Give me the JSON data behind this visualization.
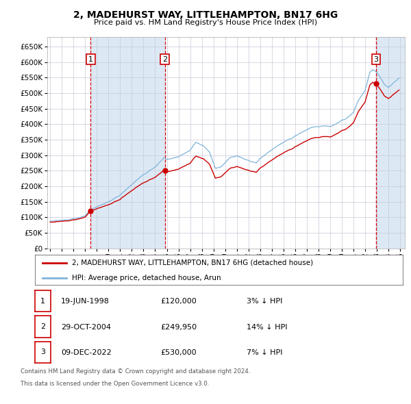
{
  "title": "2, MADEHURST WAY, LITTLEHAMPTON, BN17 6HG",
  "subtitle": "Price paid vs. HM Land Registry's House Price Index (HPI)",
  "sale_dates_str": [
    "1998-06-19",
    "2004-10-29",
    "2022-12-09"
  ],
  "sale_prices": [
    120000,
    249950,
    530000
  ],
  "sale_labels": [
    "1",
    "2",
    "3"
  ],
  "legend_line1": "2, MADEHURST WAY, LITTLEHAMPTON, BN17 6HG (detached house)",
  "legend_line2": "HPI: Average price, detached house, Arun",
  "table_data": [
    [
      "1",
      "19-JUN-1998",
      "£120,000",
      "3% ↓ HPI"
    ],
    [
      "2",
      "29-OCT-2004",
      "£249,950",
      "14% ↓ HPI"
    ],
    [
      "3",
      "09-DEC-2022",
      "£530,000",
      "7% ↓ HPI"
    ]
  ],
  "footnote1": "Contains HM Land Registry data © Crown copyright and database right 2024.",
  "footnote2": "This data is licensed under the Open Government Licence v3.0.",
  "red_line_color": "#cc0000",
  "blue_line_color": "#7fb3d9",
  "shading_color": "#dce9f5",
  "grid_color": "#c8c8d8",
  "background_color": "#ffffff",
  "ylim_min": 0,
  "ylim_max": 680000,
  "ytick_values": [
    0,
    50000,
    100000,
    150000,
    200000,
    250000,
    300000,
    350000,
    400000,
    450000,
    500000,
    550000,
    600000,
    650000
  ],
  "ytick_labels": [
    "£0",
    "£50K",
    "£100K",
    "£150K",
    "£200K",
    "£250K",
    "£300K",
    "£350K",
    "£400K",
    "£450K",
    "£500K",
    "£550K",
    "£600K",
    "£650K"
  ],
  "year_start": 1995,
  "year_end": 2025
}
